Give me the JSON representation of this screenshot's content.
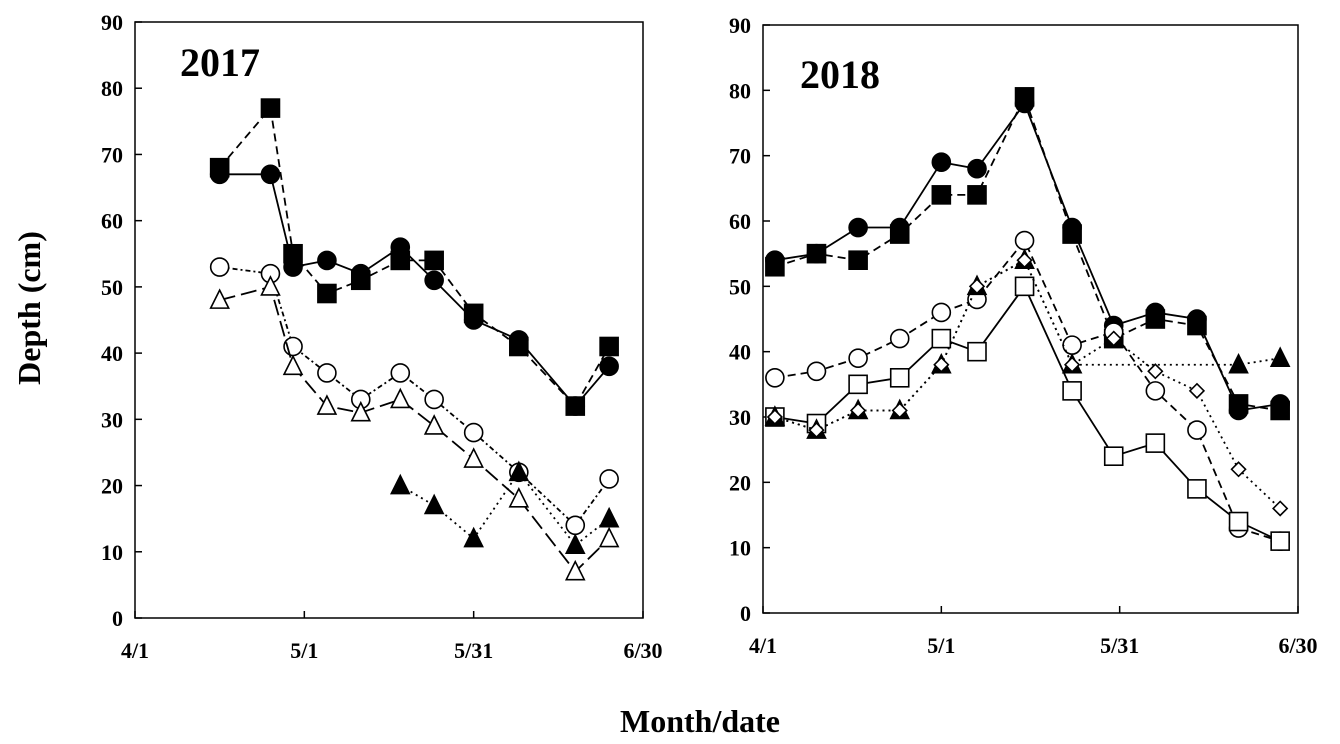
{
  "ylabel": "Depth (cm)",
  "xlabel": "Month/date",
  "chart_data": [
    {
      "type": "line",
      "title": "2017",
      "xlim": [
        "4/1",
        "6/30"
      ],
      "ylim": [
        0,
        90
      ],
      "y_ticks": [
        0,
        10,
        20,
        30,
        40,
        50,
        60,
        70,
        80,
        90
      ],
      "x_ticks": [
        "4/1",
        "5/1",
        "5/31",
        "6/30"
      ],
      "grid": false,
      "series": [
        {
          "marker": "filled-circle",
          "line": "solid",
          "x": [
            "4/16",
            "4/25",
            "4/29",
            "5/5",
            "5/11",
            "5/18",
            "5/24",
            "5/31",
            "6/8",
            "6/18",
            "6/24"
          ],
          "values": [
            67,
            67,
            53,
            54,
            52,
            56,
            51,
            45,
            42,
            32,
            38
          ]
        },
        {
          "marker": "filled-square",
          "line": "dashed",
          "x": [
            "4/16",
            "4/25",
            "4/29",
            "5/5",
            "5/11",
            "5/18",
            "5/24",
            "5/31",
            "6/8",
            "6/18",
            "6/24"
          ],
          "values": [
            68,
            77,
            55,
            49,
            51,
            54,
            54,
            46,
            41,
            32,
            41
          ]
        },
        {
          "marker": "open-circle",
          "line": "dotted-dashed",
          "x": [
            "4/16",
            "4/25",
            "4/29",
            "5/5",
            "5/11",
            "5/18",
            "5/24",
            "5/31",
            "6/8",
            "6/18",
            "6/24"
          ],
          "values": [
            53,
            52,
            41,
            37,
            33,
            37,
            33,
            28,
            22,
            14,
            21
          ]
        },
        {
          "marker": "open-triangle",
          "line": "long-dashed",
          "x": [
            "4/16",
            "4/25",
            "4/29",
            "5/5",
            "5/11",
            "5/18",
            "5/24",
            "5/31",
            "6/8",
            "6/18",
            "6/24"
          ],
          "values": [
            48,
            50,
            38,
            32,
            31,
            33,
            29,
            24,
            18,
            7,
            12
          ]
        },
        {
          "marker": "filled-triangle",
          "line": "dotted",
          "x": [
            "5/18",
            "5/24",
            "5/31",
            "6/8",
            "6/18",
            "6/24"
          ],
          "values": [
            20,
            17,
            12,
            22,
            11,
            15
          ]
        }
      ]
    },
    {
      "type": "line",
      "title": "2018",
      "xlim": [
        "4/1",
        "6/30"
      ],
      "ylim": [
        0,
        90
      ],
      "y_ticks": [
        0,
        10,
        20,
        30,
        40,
        50,
        60,
        70,
        80,
        90
      ],
      "x_ticks": [
        "4/1",
        "5/1",
        "5/31",
        "6/30"
      ],
      "grid": false,
      "series": [
        {
          "marker": "filled-circle",
          "line": "solid",
          "x": [
            "4/3",
            "4/10",
            "4/17",
            "4/24",
            "5/1",
            "5/7",
            "5/15",
            "5/23",
            "5/30",
            "6/6",
            "6/13",
            "6/20",
            "6/27"
          ],
          "values": [
            54,
            55,
            59,
            59,
            69,
            68,
            78,
            59,
            44,
            46,
            45,
            31,
            32
          ]
        },
        {
          "marker": "filled-square",
          "line": "dashed",
          "x": [
            "4/3",
            "4/10",
            "4/17",
            "4/24",
            "5/1",
            "5/7",
            "5/15",
            "5/23",
            "5/30",
            "6/6",
            "6/13",
            "6/20",
            "6/27"
          ],
          "values": [
            53,
            55,
            54,
            58,
            64,
            64,
            79,
            58,
            42,
            45,
            44,
            32,
            31
          ]
        },
        {
          "marker": "open-circle",
          "line": "dashed",
          "x": [
            "4/3",
            "4/10",
            "4/17",
            "4/24",
            "5/1",
            "5/7",
            "5/15",
            "5/23",
            "5/30",
            "6/6",
            "6/13",
            "6/20",
            "6/27"
          ],
          "values": [
            36,
            37,
            39,
            42,
            46,
            48,
            57,
            41,
            43,
            34,
            28,
            13,
            11
          ]
        },
        {
          "marker": "open-square",
          "line": "solid",
          "x": [
            "4/3",
            "4/10",
            "4/17",
            "4/24",
            "5/1",
            "5/7",
            "5/15",
            "5/23",
            "5/30",
            "6/6",
            "6/13",
            "6/20",
            "6/27"
          ],
          "values": [
            30,
            29,
            35,
            36,
            42,
            40,
            50,
            34,
            24,
            26,
            19,
            14,
            11
          ]
        },
        {
          "marker": "filled-triangle",
          "line": "dotted",
          "x": [
            "4/3",
            "4/10",
            "4/17",
            "4/24",
            "5/1",
            "5/7",
            "5/15",
            "5/23",
            "6/20",
            "6/27"
          ],
          "values": [
            30,
            28,
            31,
            31,
            38,
            50,
            54,
            38,
            38,
            39
          ]
        },
        {
          "marker": "open-diamond",
          "line": "dotted",
          "x": [
            "4/3",
            "4/10",
            "4/17",
            "4/24",
            "5/1",
            "5/7",
            "5/15",
            "5/23",
            "5/30",
            "6/6",
            "6/13",
            "6/20",
            "6/27"
          ],
          "values": [
            30,
            28,
            31,
            31,
            38,
            50,
            54,
            38,
            42,
            37,
            34,
            22,
            16
          ]
        }
      ]
    }
  ]
}
